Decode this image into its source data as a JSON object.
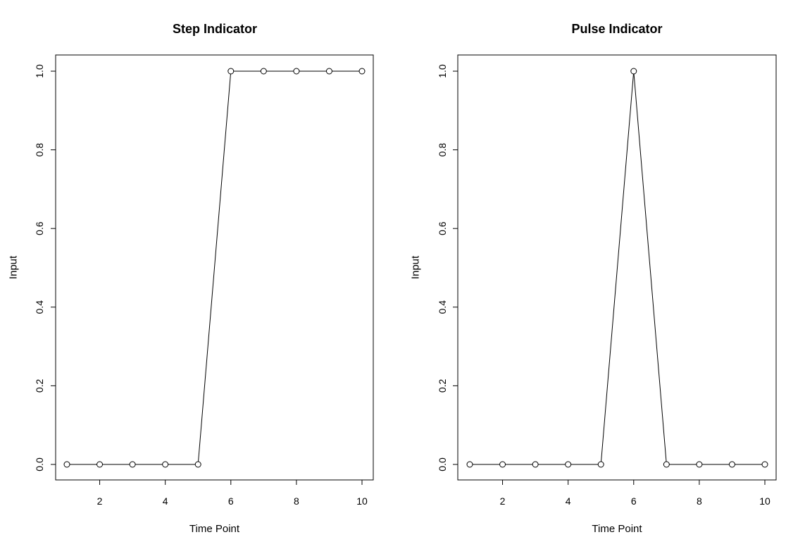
{
  "chart_data": [
    {
      "type": "line",
      "title": "Step Indicator",
      "xlabel": "Time Point",
      "ylabel": "Input",
      "x": [
        1,
        2,
        3,
        4,
        5,
        6,
        7,
        8,
        9,
        10
      ],
      "series": [
        {
          "values": [
            0,
            0,
            0,
            0,
            0,
            1,
            1,
            1,
            1,
            1
          ]
        }
      ],
      "xlim": [
        1,
        10
      ],
      "ylim": [
        0,
        1
      ],
      "xticks": [
        2,
        4,
        6,
        8,
        10
      ],
      "xtick_labels": [
        "2",
        "4",
        "6",
        "8",
        "10"
      ],
      "yticks": [
        0,
        0.2,
        0.4,
        0.6,
        0.8,
        1.0
      ],
      "ytick_labels": [
        "0.0",
        "0.2",
        "0.4",
        "0.6",
        "0.8",
        "1.0"
      ],
      "markers": "open-circle",
      "grid": false,
      "legend": "none"
    },
    {
      "type": "line",
      "title": "Pulse Indicator",
      "xlabel": "Time Point",
      "ylabel": "Input",
      "x": [
        1,
        2,
        3,
        4,
        5,
        6,
        7,
        8,
        9,
        10
      ],
      "series": [
        {
          "values": [
            0,
            0,
            0,
            0,
            0,
            1,
            0,
            0,
            0,
            0
          ]
        }
      ],
      "xlim": [
        1,
        10
      ],
      "ylim": [
        0,
        1
      ],
      "xticks": [
        2,
        4,
        6,
        8,
        10
      ],
      "xtick_labels": [
        "2",
        "4",
        "6",
        "8",
        "10"
      ],
      "yticks": [
        0,
        0.2,
        0.4,
        0.6,
        0.8,
        1.0
      ],
      "ytick_labels": [
        "0.0",
        "0.2",
        "0.4",
        "0.6",
        "0.8",
        "1.0"
      ],
      "markers": "open-circle",
      "grid": false,
      "legend": "none"
    }
  ]
}
